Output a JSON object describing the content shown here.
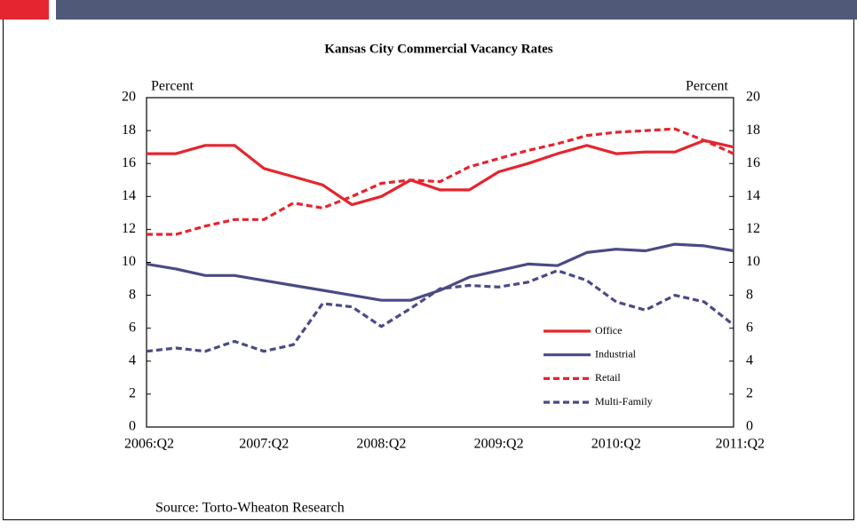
{
  "chart_data": {
    "type": "line",
    "title": "Kansas City Commercial Vacancy Rates",
    "y_label": "Percent",
    "y2_label": "Percent",
    "source": "Source: Torto-Wheaton Research",
    "categories": [
      "2006:Q2",
      null,
      null,
      null,
      "2007:Q2",
      null,
      null,
      null,
      "2008:Q2",
      null,
      null,
      null,
      "2009:Q2",
      null,
      null,
      null,
      "2010:Q2",
      null,
      null,
      null,
      "2011:Q2"
    ],
    "series": [
      {
        "name": "Office",
        "color": "#e3262f",
        "dash": false,
        "values": [
          16.6,
          16.6,
          17.1,
          17.1,
          15.7,
          15.2,
          14.7,
          13.5,
          14.0,
          15.0,
          14.4,
          14.4,
          15.5,
          16.0,
          16.6,
          17.1,
          16.6,
          16.7,
          16.7,
          17.4,
          17.0
        ]
      },
      {
        "name": "Industrial",
        "color": "#4a4a86",
        "dash": false,
        "values": [
          9.9,
          9.6,
          9.2,
          9.2,
          8.9,
          8.6,
          8.3,
          8.0,
          7.7,
          7.7,
          8.3,
          9.1,
          9.5,
          9.9,
          9.8,
          10.6,
          10.8,
          10.7,
          11.1,
          11.0,
          10.7
        ]
      },
      {
        "name": "Retail",
        "color": "#e3262f",
        "dash": true,
        "values": [
          11.7,
          11.7,
          12.2,
          12.6,
          12.6,
          13.6,
          13.3,
          14.0,
          14.8,
          15.0,
          14.9,
          15.8,
          16.3,
          16.8,
          17.2,
          17.7,
          17.9,
          18.0,
          18.1,
          17.4,
          16.6
        ]
      },
      {
        "name": "Multi-Family",
        "color": "#4a4a86",
        "dash": true,
        "values": [
          4.6,
          4.8,
          4.6,
          5.2,
          4.6,
          5.0,
          7.5,
          7.3,
          6.1,
          7.2,
          8.4,
          8.6,
          8.5,
          8.8,
          9.5,
          8.9,
          7.6,
          7.1,
          8.0,
          7.6,
          6.2
        ]
      }
    ],
    "ylim": [
      0,
      20
    ],
    "yticks": [
      0,
      2,
      4,
      6,
      8,
      10,
      12,
      14,
      16,
      18,
      20
    ],
    "y2lim": [
      0,
      20
    ],
    "y2ticks": [
      0,
      2,
      4,
      6,
      8,
      10,
      12,
      14,
      16,
      18,
      20
    ],
    "legend": "lower right"
  }
}
